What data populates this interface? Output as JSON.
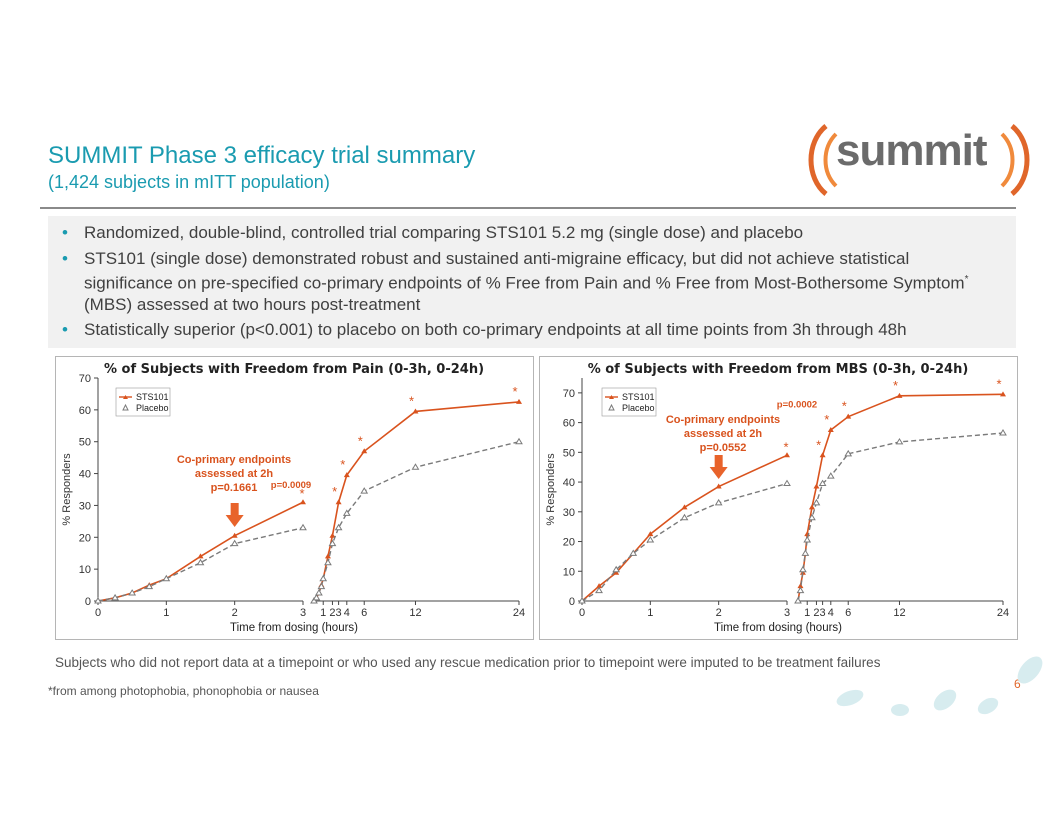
{
  "header": {
    "title": "SUMMIT Phase 3 efficacy trial summary",
    "subtitle": "(1,424 subjects in mITT population)",
    "logo_text": "summit"
  },
  "bullets": [
    "Randomized, double-blind, controlled trial comparing STS101 5.2 mg (single dose) and placebo",
    "STS101 (single dose) demonstrated robust and sustained anti-migraine efficacy, but did not achieve statistical significance on pre-specified co-primary endpoints of % Free from Pain and % Free from Most-Bothersome Symptom",
    "(MBS) assessed at two hours post-treatment",
    "Statistically superior (p<0.001) to placebo on both co-primary endpoints at all time points from 3h through 48h"
  ],
  "bullet_sup": "*",
  "footnotes": {
    "imputation": "Subjects who did not report data at a timepoint or who used any rescue medication prior to timepoint were imputed to be treatment failures",
    "asterisk": "*from among photophobia, phonophobia or nausea",
    "page": "6"
  },
  "colors": {
    "accent": "#1a9bb0",
    "sts101": "#d9531e",
    "placebo": "#7a7a7a",
    "arrow": "#e8632b"
  },
  "chart_data": [
    {
      "type": "line",
      "title": "% of Subjects with Freedom from Pain (0-3h, 0-24h)",
      "xlabel": "Time from dosing (hours)",
      "ylabel": "% Responders",
      "ylim": [
        0,
        70
      ],
      "yticks": [
        0,
        10,
        20,
        30,
        40,
        50,
        60,
        70
      ],
      "panel1": {
        "xlim": [
          0,
          3
        ],
        "xticks": [
          "0",
          "1",
          "2",
          "3"
        ]
      },
      "panel2": {
        "xticks": [
          "1",
          "2",
          "3",
          "4",
          "6",
          "12",
          "24"
        ]
      },
      "legend": [
        "STS101",
        "Placebo"
      ],
      "series": [
        {
          "name": "STS101",
          "panel1": {
            "x": [
              0,
              0.25,
              0.5,
              0.75,
              1,
              1.5,
              2,
              3
            ],
            "y": [
              0,
              1,
              2.5,
              5,
              7,
              14,
              20.5,
              31
            ]
          },
          "panel2": {
            "x": [
              0,
              0.25,
              0.5,
              0.75,
              1,
              1.5,
              2,
              3,
              4,
              6,
              12,
              24
            ],
            "y": [
              0,
              1,
              2.5,
              5,
              7,
              14,
              20.5,
              31,
              39.5,
              47,
              59.5,
              62.5
            ]
          }
        },
        {
          "name": "Placebo",
          "panel1": {
            "x": [
              0,
              0.25,
              0.5,
              0.75,
              1,
              1.5,
              2,
              3
            ],
            "y": [
              0,
              1,
              2.5,
              4.5,
              7,
              12,
              18,
              23
            ]
          },
          "panel2": {
            "x": [
              0,
              0.25,
              0.5,
              0.75,
              1,
              1.5,
              2,
              3,
              4,
              6,
              12,
              24
            ],
            "y": [
              0,
              1,
              2.5,
              4.5,
              7,
              12,
              18,
              23,
              27.5,
              34.5,
              42,
              50
            ]
          }
        }
      ],
      "annotations": {
        "coprimary": [
          "Co-primary endpoints",
          "assessed at 2h",
          "p=0.1661"
        ],
        "pval": "p=0.0009",
        "stars_at": [
          3,
          4,
          6,
          12,
          24
        ]
      }
    },
    {
      "type": "line",
      "title": "% of Subjects with Freedom from MBS (0-3h, 0-24h)",
      "xlabel": "Time from dosing (hours)",
      "ylabel": "% Responders",
      "ylim": [
        0,
        75
      ],
      "yticks": [
        0,
        10,
        20,
        30,
        40,
        50,
        60,
        70
      ],
      "panel1": {
        "xlim": [
          0,
          3
        ],
        "xticks": [
          "0",
          "1",
          "2",
          "3"
        ]
      },
      "panel2": {
        "xticks": [
          "1",
          "2",
          "3",
          "4",
          "6",
          "12",
          "24"
        ]
      },
      "legend": [
        "STS101",
        "Placebo"
      ],
      "series": [
        {
          "name": "STS101",
          "panel1": {
            "x": [
              0,
              0.25,
              0.5,
              0.75,
              1,
              1.5,
              2,
              3
            ],
            "y": [
              0,
              5,
              9.5,
              16,
              22.5,
              31.5,
              38.5,
              49
            ]
          },
          "panel2": {
            "x": [
              0,
              0.25,
              0.5,
              0.75,
              1,
              1.5,
              2,
              3,
              4,
              6,
              12,
              24
            ],
            "y": [
              0,
              5,
              9.5,
              16,
              22.5,
              31.5,
              38.5,
              49,
              57.5,
              62,
              69,
              69.5
            ]
          }
        },
        {
          "name": "Placebo",
          "panel1": {
            "x": [
              0,
              0.25,
              0.5,
              0.75,
              1,
              1.5,
              2,
              3
            ],
            "y": [
              0,
              3.5,
              10.5,
              16,
              20.5,
              28,
              33,
              39.5
            ]
          },
          "panel2": {
            "x": [
              0,
              0.25,
              0.5,
              0.75,
              1,
              1.5,
              2,
              3,
              4,
              6,
              12,
              24
            ],
            "y": [
              0,
              3.5,
              10.5,
              16,
              20.5,
              28,
              33,
              39.5,
              42,
              49.5,
              53.5,
              56.5
            ]
          }
        }
      ],
      "annotations": {
        "coprimary": [
          "Co-primary endpoints",
          "assessed at 2h",
          "p=0.0552"
        ],
        "pval": "p=0.0002",
        "stars_at": [
          3,
          4,
          6,
          12,
          24
        ]
      }
    }
  ]
}
